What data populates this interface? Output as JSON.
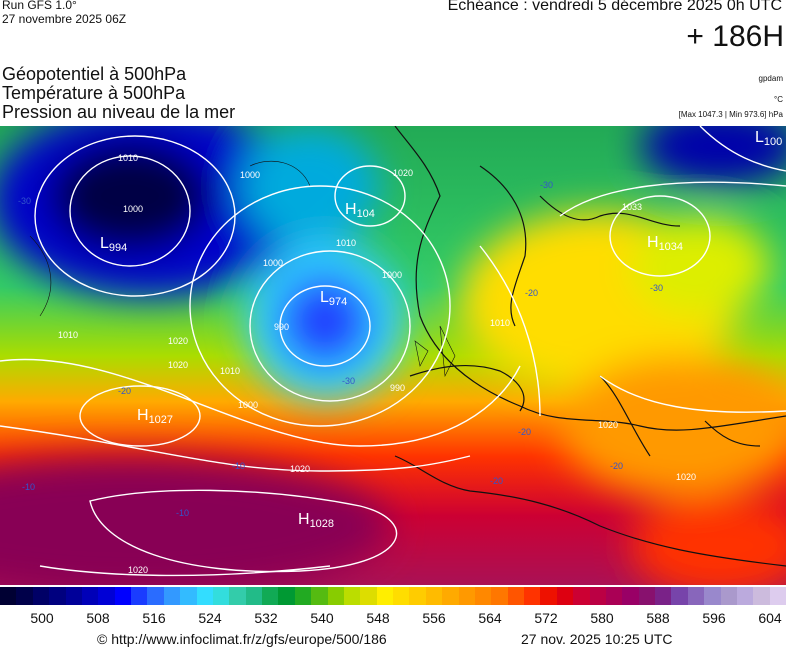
{
  "header": {
    "run": "Run GFS 1.0°",
    "run_date": "27 novembre 2025 06Z",
    "echeance": "Echéance : vendredi 5 décembre 2025 0h UTC",
    "hour": "+ 186H",
    "params": [
      "Géopotentiel à 500hPa",
      "Température à 500hPa",
      "Pression au niveau de la mer"
    ],
    "model_code": "gpdam",
    "unit": "°C",
    "range": "[Max 1047.3 | Min 973.6] hPa"
  },
  "map": {
    "pressure_centers": [
      {
        "type": "L",
        "value": "994"
      },
      {
        "type": "H",
        "value": "104"
      },
      {
        "type": "L",
        "value": "974"
      },
      {
        "type": "H",
        "value": "1034"
      },
      {
        "type": "H",
        "value": "1027"
      },
      {
        "type": "H",
        "value": "1028"
      },
      {
        "type": "L",
        "value": "100"
      }
    ],
    "isobar_labels": [
      "1010",
      "1000",
      "1000",
      "1010",
      "1020",
      "1000",
      "990",
      "1010",
      "1020",
      "1010",
      "1000",
      "990",
      "1020",
      "1020",
      "1010",
      "1000",
      "1033",
      "1020",
      "1020",
      "1020"
    ],
    "temperature_labels": [
      "-30",
      "-30",
      "-30",
      "-20",
      "-20",
      "-10",
      "-10",
      "-10",
      "-30",
      "-20",
      "-20",
      "-20"
    ]
  },
  "scale": {
    "colors": [
      "#000033",
      "#00004a",
      "#000066",
      "#00007f",
      "#000099",
      "#0000b8",
      "#0000d6",
      "#0000ff",
      "#1a3cff",
      "#2a6cff",
      "#3399ff",
      "#33bbff",
      "#33ddff",
      "#33dddd",
      "#33ccaa",
      "#22bb88",
      "#11aa55",
      "#009933",
      "#22aa22",
      "#55bb11",
      "#88cc00",
      "#bbdd00",
      "#dddd00",
      "#ffee00",
      "#ffdd00",
      "#ffcc00",
      "#ffbb00",
      "#ffaa00",
      "#ff9900",
      "#ff8800",
      "#ff7700",
      "#ff5500",
      "#ff3300",
      "#ee1100",
      "#dd0011",
      "#cc0033",
      "#bb0044",
      "#aa0055",
      "#990066",
      "#88116e",
      "#7a2288",
      "#7744aa",
      "#8866bb",
      "#9988cc",
      "#aa99cc",
      "#bbaadd",
      "#ccbbdd",
      "#ddccee"
    ],
    "ticks": [
      "500",
      "508",
      "516",
      "524",
      "532",
      "540",
      "548",
      "556",
      "564",
      "572",
      "580",
      "588",
      "596",
      "604"
    ]
  },
  "footer": {
    "copyright": "© http://www.infoclimat.fr/z/gfs/europe/500/186",
    "generated": "27 nov. 2025 10:25 UTC"
  }
}
